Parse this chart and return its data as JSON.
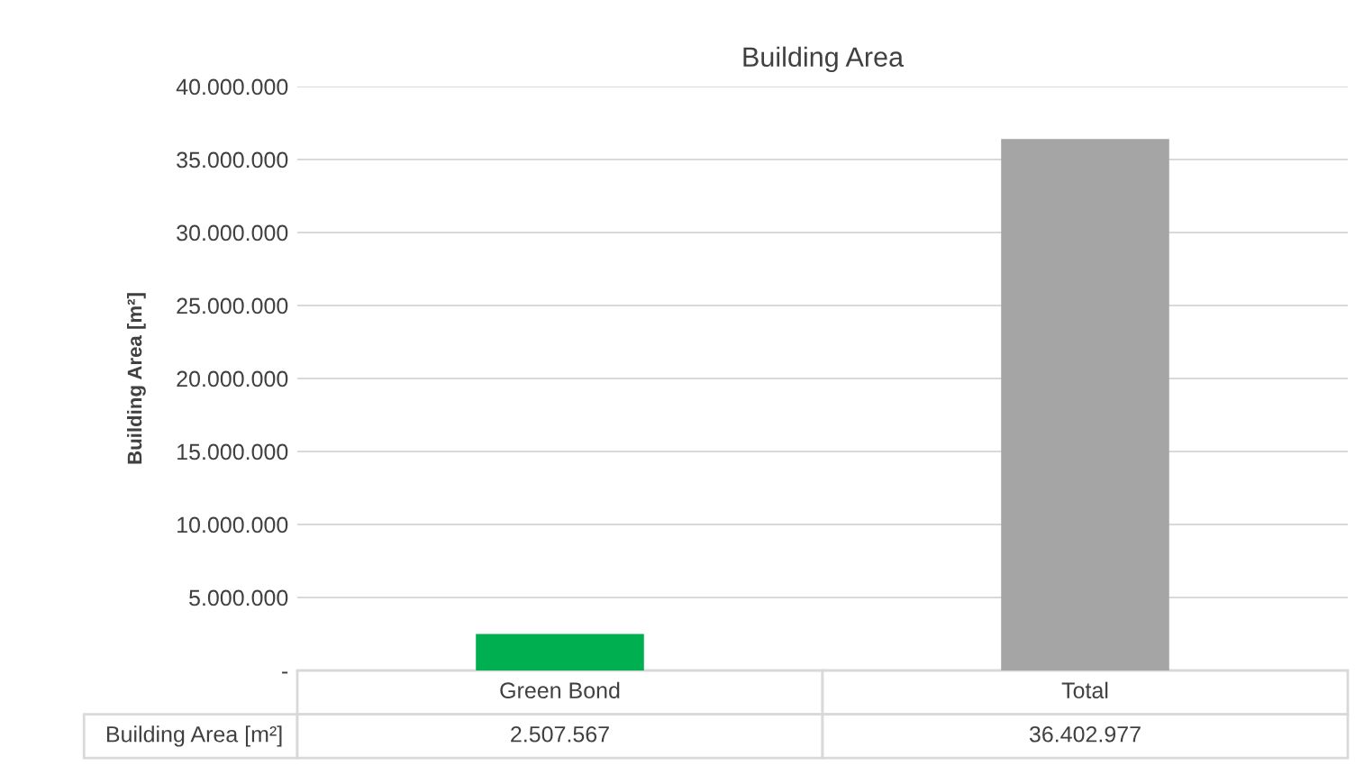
{
  "chart_data": {
    "type": "bar",
    "title": "Building Area",
    "ylabel": "Building Area [m²]",
    "categories": [
      "Green Bond",
      "Total"
    ],
    "series": [
      {
        "name": "Building Area [m²]",
        "values": [
          2507567,
          36402977
        ],
        "value_labels": [
          "2.507.567",
          "36.402.977"
        ]
      }
    ],
    "colors": [
      "#00b050",
      "#a5a5a5"
    ],
    "ylim": [
      0,
      40000000
    ],
    "yticks": [
      {
        "value": 0,
        "label": "-"
      },
      {
        "value": 5000000,
        "label": "5.000.000"
      },
      {
        "value": 10000000,
        "label": "10.000.000"
      },
      {
        "value": 15000000,
        "label": "15.000.000"
      },
      {
        "value": 20000000,
        "label": "20.000.000"
      },
      {
        "value": 25000000,
        "label": "25.000.000"
      },
      {
        "value": 30000000,
        "label": "30.000.000"
      },
      {
        "value": 35000000,
        "label": "35.000.000"
      },
      {
        "value": 40000000,
        "label": "40.000.000"
      }
    ],
    "grid": "y",
    "legend": false
  }
}
